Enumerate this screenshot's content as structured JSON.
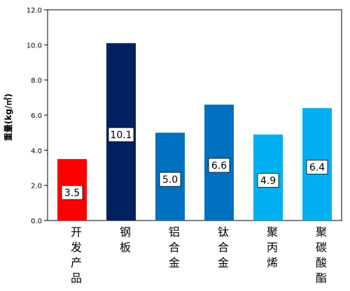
{
  "chart_data": {
    "type": "bar",
    "categories": [
      "开发产品",
      "钢板",
      "铝合金",
      "钛合金",
      "聚丙烯",
      "聚碳酸酯"
    ],
    "values": [
      3.5,
      10.1,
      5.0,
      6.6,
      4.9,
      6.4
    ],
    "value_labels": [
      "3.5",
      "10.1",
      "5.0",
      "6.6",
      "4.9",
      "6.4"
    ],
    "colors": [
      "#ff0000",
      "#002060",
      "#0070c0",
      "#0070c0",
      "#00b0f0",
      "#00b0f0"
    ],
    "title": "",
    "xlabel": "",
    "ylabel": "重量(kg/㎡)",
    "ylim": [
      0,
      12
    ],
    "yticks": [
      "0.0",
      "2.0",
      "4.0",
      "6.0",
      "8.0",
      "10.0",
      "12.0"
    ],
    "grid": false,
    "legend": "none"
  }
}
